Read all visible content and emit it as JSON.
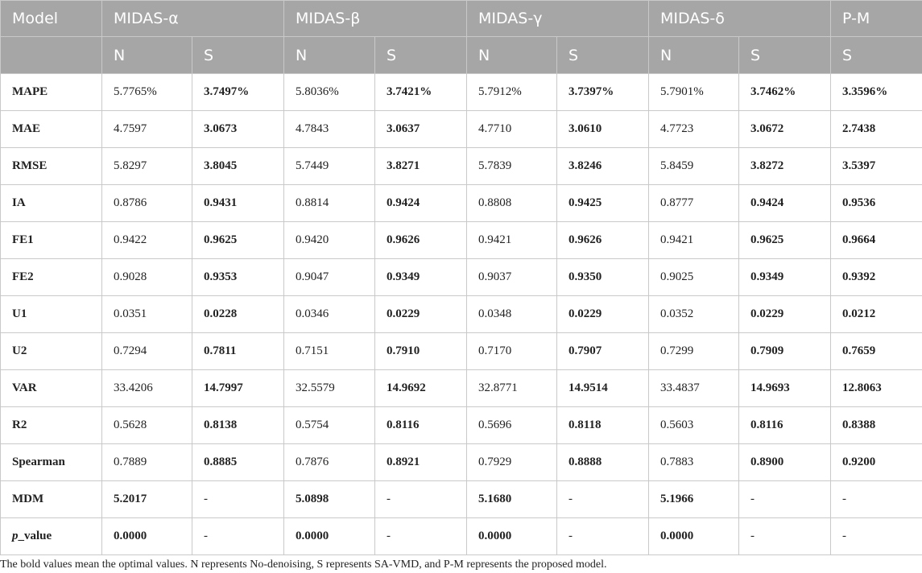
{
  "table": {
    "header": {
      "model_label": "Model",
      "groups": [
        "MIDAS-α",
        "MIDAS-β",
        "MIDAS-γ",
        "MIDAS-δ",
        "P-M"
      ],
      "subheaders": [
        "N",
        "S",
        "N",
        "S",
        "N",
        "S",
        "N",
        "S",
        "S"
      ]
    },
    "rows": [
      {
        "metric": "MAPE",
        "values": [
          "5.7765%",
          "3.7497%",
          "5.8036%",
          "3.7421%",
          "5.7912%",
          "3.7397%",
          "5.7901%",
          "3.7462%",
          "3.3596%"
        ]
      },
      {
        "metric": "MAE",
        "values": [
          "4.7597",
          "3.0673",
          "4.7843",
          "3.0637",
          "4.7710",
          "3.0610",
          "4.7723",
          "3.0672",
          "2.7438"
        ]
      },
      {
        "metric": "RMSE",
        "values": [
          "5.8297",
          "3.8045",
          "5.7449",
          "3.8271",
          "5.7839",
          "3.8246",
          "5.8459",
          "3.8272",
          "3.5397"
        ]
      },
      {
        "metric": "IA",
        "values": [
          "0.8786",
          "0.9431",
          "0.8814",
          "0.9424",
          "0.8808",
          "0.9425",
          "0.8777",
          "0.9424",
          "0.9536"
        ]
      },
      {
        "metric": "FE1",
        "values": [
          "0.9422",
          "0.9625",
          "0.9420",
          "0.9626",
          "0.9421",
          "0.9626",
          "0.9421",
          "0.9625",
          "0.9664"
        ]
      },
      {
        "metric": "FE2",
        "values": [
          "0.9028",
          "0.9353",
          "0.9047",
          "0.9349",
          "0.9037",
          "0.9350",
          "0.9025",
          "0.9349",
          "0.9392"
        ]
      },
      {
        "metric": "U1",
        "values": [
          "0.0351",
          "0.0228",
          "0.0346",
          "0.0229",
          "0.0348",
          "0.0229",
          "0.0352",
          "0.0229",
          "0.0212"
        ]
      },
      {
        "metric": "U2",
        "values": [
          "0.7294",
          "0.7811",
          "0.7151",
          "0.7910",
          "0.7170",
          "0.7907",
          "0.7299",
          "0.7909",
          "0.7659"
        ]
      },
      {
        "metric": "VAR",
        "values": [
          "33.4206",
          "14.7997",
          "32.5579",
          "14.9692",
          "32.8771",
          "14.9514",
          "33.4837",
          "14.9693",
          "12.8063"
        ]
      },
      {
        "metric": "R2",
        "values": [
          "0.5628",
          "0.8138",
          "0.5754",
          "0.8116",
          "0.5696",
          "0.8118",
          "0.5603",
          "0.8116",
          "0.8388"
        ]
      },
      {
        "metric": "Spearman",
        "values": [
          "0.7889",
          "0.8885",
          "0.7876",
          "0.8921",
          "0.7929",
          "0.8888",
          "0.7883",
          "0.8900",
          "0.9200"
        ]
      },
      {
        "metric": "MDM",
        "values": [
          "5.2017",
          "-",
          "5.0898",
          "-",
          "5.1680",
          "-",
          "5.1966",
          "-",
          "-"
        ]
      },
      {
        "metric_italic": "p",
        "metric": "_value",
        "values": [
          "0.0000",
          "-",
          "0.0000",
          "-",
          "0.0000",
          "-",
          "0.0000",
          "-",
          "-"
        ]
      }
    ]
  },
  "footnote": "The bold values mean the optimal values. N represents No-denoising, S represents SA-VMD, and P-M represents the proposed model."
}
